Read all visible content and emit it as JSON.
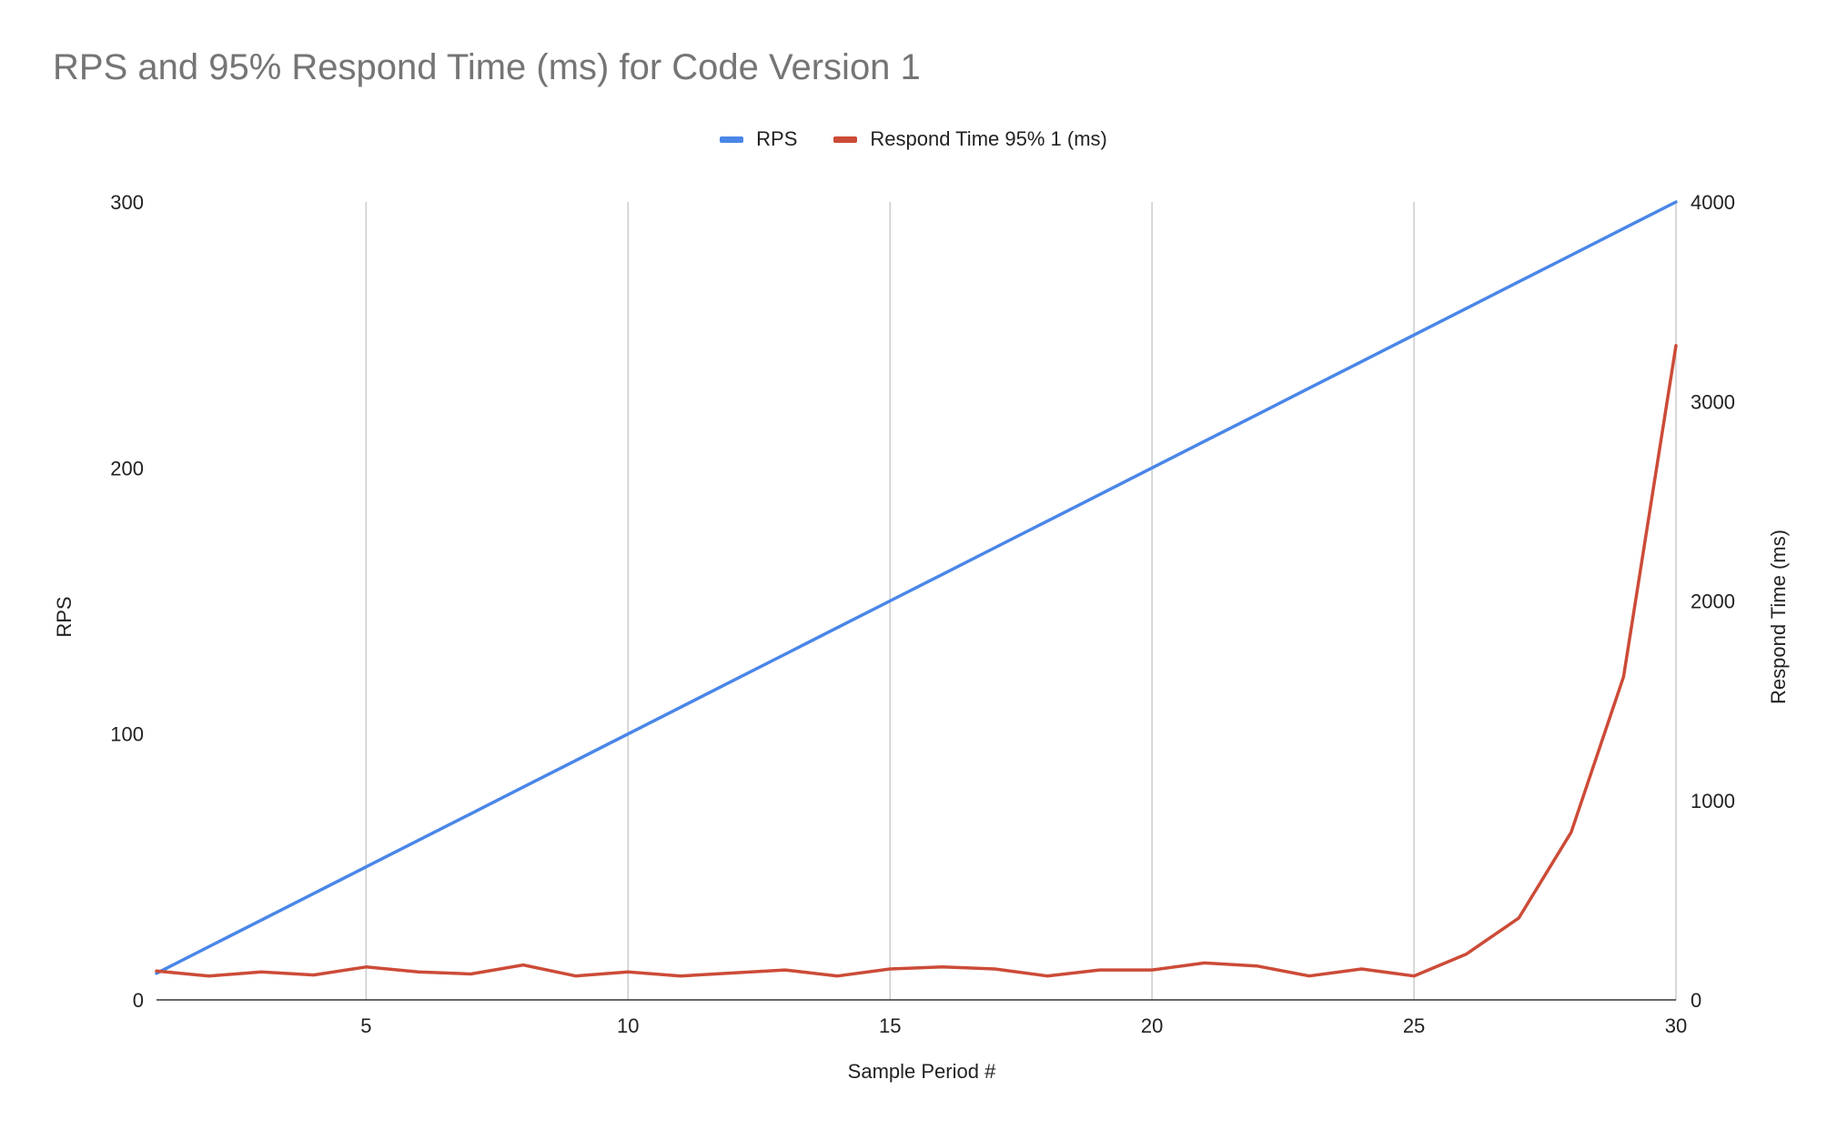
{
  "chart_data": {
    "type": "line",
    "title": "RPS and 95% Respond Time (ms) for Code Version 1",
    "xlabel": "Sample Period #",
    "ylabel_left": "RPS",
    "ylabel_right": "Respond Time (ms)",
    "xlim": [
      1,
      30
    ],
    "xticks": [
      5,
      10,
      15,
      20,
      25,
      30
    ],
    "ylim_left": [
      0,
      300
    ],
    "yticks_left": [
      0,
      100,
      200,
      300
    ],
    "ylim_right": [
      0,
      4000
    ],
    "yticks_right": [
      0,
      1000,
      2000,
      3000,
      4000
    ],
    "grid": "vertical",
    "legend_position": "top-center",
    "x": [
      1,
      2,
      3,
      4,
      5,
      6,
      7,
      8,
      9,
      10,
      11,
      12,
      13,
      14,
      15,
      16,
      17,
      18,
      19,
      20,
      21,
      22,
      23,
      24,
      25,
      26,
      27,
      28,
      29,
      30
    ],
    "series": [
      {
        "name": "RPS",
        "axis": "left",
        "color": "#4a86e8",
        "values": [
          10,
          20,
          30,
          40,
          50,
          60,
          70,
          80,
          90,
          100,
          110,
          120,
          130,
          140,
          150,
          160,
          170,
          180,
          190,
          200,
          210,
          220,
          230,
          240,
          250,
          260,
          270,
          280,
          290,
          300
        ]
      },
      {
        "name": "Respond Time 95% 1 (ms)",
        "axis": "right",
        "color": "#cc4b37",
        "values": [
          145,
          120,
          140,
          125,
          165,
          140,
          130,
          175,
          120,
          140,
          120,
          135,
          150,
          120,
          155,
          165,
          155,
          120,
          150,
          150,
          185,
          170,
          120,
          155,
          120,
          230,
          410,
          840,
          1620,
          3280
        ]
      }
    ]
  }
}
